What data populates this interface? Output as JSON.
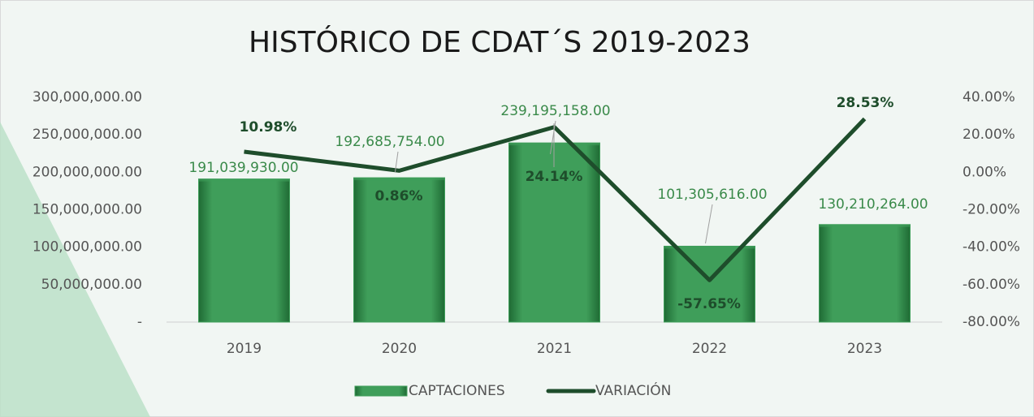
{
  "chart_data": {
    "type": "bar",
    "title": "HISTÓRICO DE CDAT´S 2019-2023",
    "categories": [
      "2019",
      "2020",
      "2021",
      "2022",
      "2023"
    ],
    "series": [
      {
        "name": "CAPTACIONES",
        "type": "bar",
        "color": "#3f9e5a",
        "values": [
          191039930,
          192685754,
          239195158,
          101305616,
          130210264
        ],
        "value_labels": [
          "191,039,930.00",
          "192,685,754.00",
          "239,195,158.00",
          "101,305,616.00",
          "130,210,264.00"
        ]
      },
      {
        "name": "VARIACIÓN",
        "type": "line",
        "color": "#1e4d2b",
        "axis": "y2",
        "values": [
          10.98,
          0.86,
          24.14,
          -57.65,
          28.53
        ],
        "value_labels": [
          "10.98%",
          "0.86%",
          "24.14%",
          "-57.65%",
          "28.53%"
        ]
      }
    ],
    "ylim": [
      0,
      300000000
    ],
    "yticks": [
      {
        "value": 0,
        "label": "-"
      },
      {
        "value": 50000000,
        "label": "50,000,000.00"
      },
      {
        "value": 100000000,
        "label": "100,000,000.00"
      },
      {
        "value": 150000000,
        "label": "150,000,000.00"
      },
      {
        "value": 200000000,
        "label": "200,000,000.00"
      },
      {
        "value": 250000000,
        "label": "250,000,000.00"
      },
      {
        "value": 300000000,
        "label": "300,000,000.00"
      }
    ],
    "y2lim": [
      -80,
      40
    ],
    "y2ticks": [
      {
        "value": -80,
        "label": "-80.00%"
      },
      {
        "value": -60,
        "label": "-60.00%"
      },
      {
        "value": -40,
        "label": "-40.00%"
      },
      {
        "value": -20,
        "label": "-20.00%"
      },
      {
        "value": 0,
        "label": "0.00%"
      },
      {
        "value": 20,
        "label": "20.00%"
      },
      {
        "value": 40,
        "label": "40.00%"
      }
    ],
    "legend": "bottom"
  }
}
